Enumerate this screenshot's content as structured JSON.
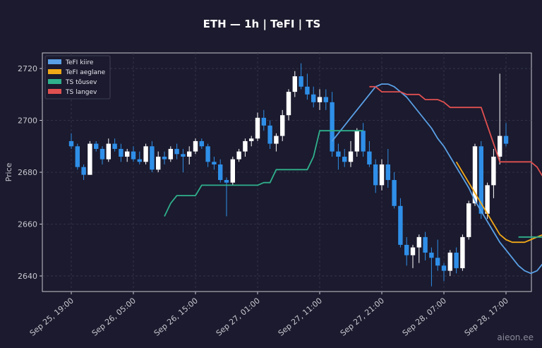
{
  "chart_data": {
    "type": "candlestick",
    "title": "ETH — 1h  |  TeFI  |  TS",
    "ylabel": "Price",
    "ylim": [
      2634,
      2726
    ],
    "yticks": [
      2640,
      2660,
      2680,
      2700,
      2720
    ],
    "xticks": [
      {
        "label": "Sep 25, 19:00",
        "index": 0
      },
      {
        "label": "Sep 26, 05:00",
        "index": 10
      },
      {
        "label": "Sep 26, 15:00",
        "index": 20
      },
      {
        "label": "Sep 27, 01:00",
        "index": 30
      },
      {
        "label": "Sep 27, 11:00",
        "index": 40
      },
      {
        "label": "Sep 27, 21:00",
        "index": 50
      },
      {
        "label": "Sep 28, 07:00",
        "index": 60
      },
      {
        "label": "Sep 28, 17:00",
        "index": 70
      }
    ],
    "legend_position": "top-left",
    "colors": {
      "up": "#ffffff",
      "down": "#2f8fe8",
      "background": "#1b1a2e"
    },
    "candles": [
      [
        2692,
        2695,
        2689,
        2690
      ],
      [
        2690,
        2691,
        2681,
        2682
      ],
      [
        2682,
        2683,
        2677,
        2679
      ],
      [
        2679,
        2692,
        2679,
        2691
      ],
      [
        2691,
        2692,
        2688,
        2689
      ],
      [
        2689,
        2690,
        2683,
        2685
      ],
      [
        2685,
        2693,
        2684,
        2691
      ],
      [
        2691,
        2693,
        2688,
        2689
      ],
      [
        2689,
        2691,
        2684,
        2686
      ],
      [
        2686,
        2689,
        2684,
        2688
      ],
      [
        2688,
        2690,
        2684,
        2685
      ],
      [
        2685,
        2688,
        2683,
        2684
      ],
      [
        2684,
        2691,
        2683,
        2690
      ],
      [
        2690,
        2692,
        2680,
        2681
      ],
      [
        2681,
        2688,
        2680,
        2686
      ],
      [
        2686,
        2688,
        2683,
        2685
      ],
      [
        2685,
        2690,
        2684,
        2689
      ],
      [
        2689,
        2691,
        2685,
        2687
      ],
      [
        2687,
        2689,
        2680,
        2686
      ],
      [
        2686,
        2690,
        2683,
        2688
      ],
      [
        2688,
        2693,
        2687,
        2692
      ],
      [
        2692,
        2693,
        2689,
        2690
      ],
      [
        2690,
        2691,
        2682,
        2684
      ],
      [
        2684,
        2686,
        2681,
        2683
      ],
      [
        2683,
        2685,
        2676,
        2677
      ],
      [
        2677,
        2678,
        2663,
        2676
      ],
      [
        2676,
        2686,
        2675,
        2685
      ],
      [
        2685,
        2689,
        2684,
        2688
      ],
      [
        2688,
        2693,
        2686,
        2692
      ],
      [
        2692,
        2694,
        2690,
        2693
      ],
      [
        2693,
        2703,
        2692,
        2701
      ],
      [
        2701,
        2704,
        2696,
        2698
      ],
      [
        2698,
        2700,
        2689,
        2691
      ],
      [
        2691,
        2695,
        2688,
        2694
      ],
      [
        2694,
        2704,
        2692,
        2702
      ],
      [
        2702,
        2712,
        2700,
        2711
      ],
      [
        2711,
        2719,
        2709,
        2717
      ],
      [
        2717,
        2722,
        2712,
        2713
      ],
      [
        2713,
        2718,
        2708,
        2710
      ],
      [
        2710,
        2713,
        2705,
        2707
      ],
      [
        2707,
        2712,
        2704,
        2709
      ],
      [
        2709,
        2712,
        2704,
        2707
      ],
      [
        2707,
        2711,
        2686,
        2688
      ],
      [
        2688,
        2691,
        2681,
        2686
      ],
      [
        2686,
        2689,
        2682,
        2684
      ],
      [
        2684,
        2692,
        2682,
        2688
      ],
      [
        2688,
        2697,
        2686,
        2696
      ],
      [
        2696,
        2699,
        2686,
        2688
      ],
      [
        2688,
        2692,
        2682,
        2683
      ],
      [
        2683,
        2685,
        2672,
        2675
      ],
      [
        2675,
        2685,
        2673,
        2683
      ],
      [
        2683,
        2689,
        2674,
        2677
      ],
      [
        2677,
        2680,
        2666,
        2667
      ],
      [
        2667,
        2670,
        2651,
        2652
      ],
      [
        2652,
        2655,
        2644,
        2648
      ],
      [
        2648,
        2652,
        2643,
        2651
      ],
      [
        2651,
        2656,
        2645,
        2655
      ],
      [
        2655,
        2657,
        2646,
        2649
      ],
      [
        2649,
        2651,
        2636,
        2647
      ],
      [
        2647,
        2654,
        2642,
        2644
      ],
      [
        2644,
        2645,
        2638,
        2642
      ],
      [
        2642,
        2650,
        2640,
        2649
      ],
      [
        2649,
        2651,
        2641,
        2643
      ],
      [
        2643,
        2656,
        2642,
        2655
      ],
      [
        2655,
        2669,
        2654,
        2668
      ],
      [
        2668,
        2691,
        2667,
        2690
      ],
      [
        2690,
        2692,
        2662,
        2664
      ],
      [
        2664,
        2676,
        2662,
        2675
      ],
      [
        2675,
        2689,
        2670,
        2686
      ],
      [
        2686,
        2718,
        2683,
        2694
      ],
      [
        2694,
        2699,
        2690,
        2691
      ]
    ],
    "series": [
      {
        "name": "TeFI kiire",
        "color": "#5aa0e6",
        "start": 42,
        "values": [
          2692,
          2695,
          2698,
          2701,
          2704,
          2707,
          2710,
          2713,
          2714,
          2714,
          2713,
          2711,
          2709,
          2706,
          2703,
          2700,
          2697,
          2693,
          2690,
          2686,
          2682,
          2678,
          2674,
          2669,
          2665,
          2661,
          2657,
          2653,
          2650,
          2647,
          2644,
          2642,
          2641,
          2642,
          2645,
          2649,
          2654,
          2659,
          2663,
          2668,
          2672
        ]
      },
      {
        "name": "TeFI aeglane",
        "color": "#f0a818",
        "start": 62,
        "values": [
          2684,
          2680,
          2676,
          2672,
          2668,
          2664,
          2660,
          2656,
          2654,
          2653,
          2653,
          2653,
          2654,
          2655,
          2656,
          2658
        ]
      },
      {
        "name": "TS tõusev",
        "color": "#2fb08c",
        "segments": [
          {
            "start": 15,
            "values": [
              2663,
              2668,
              2671,
              2671,
              2671,
              2671,
              2675,
              2675,
              2675,
              2675,
              2675,
              2675,
              2675,
              2675,
              2675,
              2675,
              2676,
              2676,
              2681,
              2681,
              2681,
              2681,
              2681,
              2681,
              2686,
              2696,
              2696,
              2696,
              2696,
              2696,
              2696,
              2696,
              2696
            ]
          },
          {
            "start": 72,
            "values": [
              2655,
              2655,
              2655,
              2655,
              2655,
              2655,
              2655,
              2655,
              2655,
              2655,
              2655,
              2655
            ]
          }
        ]
      },
      {
        "name": "TS langev",
        "color": "#e05050",
        "segments": [
          {
            "start": 48,
            "values": [
              2713,
              2713,
              2711,
              2711,
              2711,
              2711,
              2710,
              2710,
              2710,
              2708,
              2708,
              2708,
              2707,
              2705,
              2705,
              2705,
              2705,
              2705,
              2705,
              2698,
              2691,
              2684,
              2684,
              2684,
              2684,
              2684,
              2684,
              2682,
              2678,
              2677,
              2676,
              2672,
              2672,
              2672,
              2672,
              2672
            ]
          }
        ]
      }
    ]
  },
  "watermark": "aieon.ee"
}
